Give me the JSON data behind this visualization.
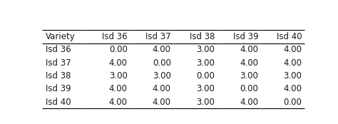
{
  "columns": [
    "Variety",
    "Isd 36",
    "Isd 37",
    "Isd 38",
    "Isd 39",
    "Isd 40"
  ],
  "rows": [
    [
      "Isd 36",
      "0.00",
      "4.00",
      "3.00",
      "4.00",
      "4.00"
    ],
    [
      "Isd 37",
      "4.00",
      "0.00",
      "3.00",
      "4.00",
      "4.00"
    ],
    [
      "Isd 38",
      "3.00",
      "3.00",
      "0.00",
      "3.00",
      "3.00"
    ],
    [
      "Isd 39",
      "4.00",
      "4.00",
      "3.00",
      "0.00",
      "4.00"
    ],
    [
      "Isd 40",
      "4.00",
      "4.00",
      "3.00",
      "4.00",
      "0.00"
    ]
  ],
  "background_color": "#ffffff",
  "text_color": "#1a1a1a",
  "fontsize": 8.5,
  "fig_width": 4.74,
  "fig_height": 1.74,
  "dpi": 100
}
